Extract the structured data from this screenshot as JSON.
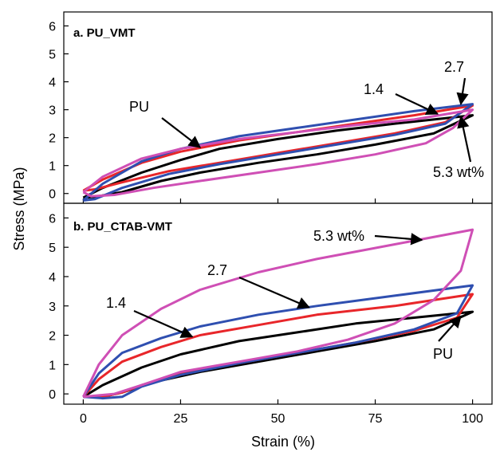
{
  "figure": {
    "y_label": "Stress (MPa)",
    "x_label": "Strain (%)"
  },
  "chart_data": [
    {
      "type": "line",
      "title": "a. PU_VMT",
      "xlabel": "Strain (%)",
      "ylabel": "Stress (MPa)",
      "xlim": [
        -5,
        105
      ],
      "ylim": [
        -0.35,
        6.5
      ],
      "x_ticks": [
        0,
        25,
        50,
        75,
        100
      ],
      "y_ticks": [
        0,
        1,
        2,
        3,
        4,
        5,
        6
      ],
      "x_tick_labels": [
        "0",
        "25",
        "50",
        "75",
        "100"
      ],
      "y_tick_labels": [
        "0",
        "1",
        "2",
        "3",
        "4",
        "5",
        "6"
      ],
      "grid": false,
      "series": [
        {
          "name": "PU",
          "color": "#000000",
          "loading": [
            [
              0,
              -0.15
            ],
            [
              5,
              0.2
            ],
            [
              15,
              0.75
            ],
            [
              25,
              1.2
            ],
            [
              35,
              1.6
            ],
            [
              50,
              1.95
            ],
            [
              65,
              2.25
            ],
            [
              80,
              2.5
            ],
            [
              100,
              2.8
            ]
          ],
          "unloading": [
            [
              100,
              2.8
            ],
            [
              90,
              2.15
            ],
            [
              75,
              1.75
            ],
            [
              60,
              1.4
            ],
            [
              45,
              1.1
            ],
            [
              30,
              0.75
            ],
            [
              20,
              0.45
            ],
            [
              10,
              0.05
            ],
            [
              3,
              -0.12
            ],
            [
              0,
              -0.15
            ]
          ]
        },
        {
          "name": "1.4",
          "color": "#e8262a",
          "loading": [
            [
              0,
              0.1
            ],
            [
              5,
              0.5
            ],
            [
              15,
              1.1
            ],
            [
              25,
              1.5
            ],
            [
              40,
              1.9
            ],
            [
              55,
              2.2
            ],
            [
              70,
              2.5
            ],
            [
              85,
              2.8
            ],
            [
              100,
              3.15
            ]
          ],
          "unloading": [
            [
              100,
              3.15
            ],
            [
              93,
              2.55
            ],
            [
              80,
              2.15
            ],
            [
              65,
              1.8
            ],
            [
              50,
              1.45
            ],
            [
              35,
              1.1
            ],
            [
              22,
              0.8
            ],
            [
              10,
              0.4
            ],
            [
              3,
              0.15
            ],
            [
              0,
              0.1
            ]
          ]
        },
        {
          "name": "2.7",
          "color": "#2f4fb0",
          "loading": [
            [
              0,
              -0.25
            ],
            [
              5,
              0.35
            ],
            [
              15,
              1.15
            ],
            [
              25,
              1.6
            ],
            [
              40,
              2.05
            ],
            [
              55,
              2.35
            ],
            [
              70,
              2.65
            ],
            [
              85,
              2.95
            ],
            [
              100,
              3.2
            ]
          ],
          "unloading": [
            [
              100,
              3.2
            ],
            [
              93,
              2.5
            ],
            [
              80,
              2.1
            ],
            [
              65,
              1.75
            ],
            [
              50,
              1.4
            ],
            [
              35,
              1.05
            ],
            [
              22,
              0.7
            ],
            [
              10,
              0.2
            ],
            [
              3,
              -0.2
            ],
            [
              0,
              -0.25
            ]
          ]
        },
        {
          "name": "5.3 wt%",
          "color": "#cf4fb5",
          "loading": [
            [
              0,
              0.05
            ],
            [
              5,
              0.6
            ],
            [
              15,
              1.25
            ],
            [
              25,
              1.6
            ],
            [
              40,
              1.95
            ],
            [
              55,
              2.2
            ],
            [
              70,
              2.45
            ],
            [
              85,
              2.65
            ],
            [
              100,
              3.0
            ]
          ],
          "unloading": [
            [
              100,
              3.0
            ],
            [
              95,
              2.35
            ],
            [
              88,
              1.8
            ],
            [
              75,
              1.4
            ],
            [
              60,
              1.05
            ],
            [
              45,
              0.75
            ],
            [
              30,
              0.45
            ],
            [
              18,
              0.2
            ],
            [
              8,
              -0.05
            ],
            [
              2,
              -0.1
            ],
            [
              0,
              0.05
            ]
          ]
        }
      ],
      "annotations": [
        {
          "text": "PU",
          "target": [
            30,
            1.65
          ]
        },
        {
          "text": "1.4",
          "target": [
            91,
            2.85
          ]
        },
        {
          "text": "2.7",
          "target": [
            97,
            3.2
          ]
        },
        {
          "text": "5.3 wt%",
          "target": [
            97,
            2.75
          ]
        }
      ]
    },
    {
      "type": "line",
      "title": "b. PU_CTAB-VMT",
      "xlabel": "Strain (%)",
      "ylabel": "Stress (MPa)",
      "xlim": [
        -5,
        105
      ],
      "ylim": [
        -0.35,
        6.5
      ],
      "x_ticks": [
        0,
        25,
        50,
        75,
        100
      ],
      "y_ticks": [
        0,
        1,
        2,
        3,
        4,
        5,
        6
      ],
      "x_tick_labels": [
        "0",
        "25",
        "50",
        "75",
        "100"
      ],
      "y_tick_labels": [
        "0",
        "1",
        "2",
        "3",
        "4",
        "5",
        "6"
      ],
      "grid": false,
      "series": [
        {
          "name": "PU",
          "color": "#000000",
          "loading": [
            [
              0,
              -0.1
            ],
            [
              5,
              0.3
            ],
            [
              15,
              0.9
            ],
            [
              25,
              1.35
            ],
            [
              40,
              1.8
            ],
            [
              55,
              2.1
            ],
            [
              70,
              2.4
            ],
            [
              85,
              2.6
            ],
            [
              100,
              2.8
            ]
          ],
          "unloading": [
            [
              100,
              2.8
            ],
            [
              90,
              2.2
            ],
            [
              75,
              1.8
            ],
            [
              60,
              1.45
            ],
            [
              45,
              1.1
            ],
            [
              30,
              0.75
            ],
            [
              18,
              0.4
            ],
            [
              10,
              0.05
            ],
            [
              5,
              -0.1
            ],
            [
              0,
              -0.1
            ]
          ]
        },
        {
          "name": "1.4",
          "color": "#e8262a",
          "loading": [
            [
              0,
              -0.1
            ],
            [
              4,
              0.5
            ],
            [
              10,
              1.1
            ],
            [
              20,
              1.6
            ],
            [
              30,
              2.0
            ],
            [
              45,
              2.35
            ],
            [
              60,
              2.7
            ],
            [
              80,
              3.0
            ],
            [
              100,
              3.4
            ]
          ],
          "unloading": [
            [
              100,
              3.4
            ],
            [
              96,
              2.6
            ],
            [
              85,
              2.15
            ],
            [
              70,
              1.75
            ],
            [
              55,
              1.4
            ],
            [
              40,
              1.05
            ],
            [
              25,
              0.7
            ],
            [
              15,
              0.3
            ],
            [
              10,
              0.05
            ],
            [
              5,
              -0.1
            ],
            [
              0,
              -0.1
            ]
          ]
        },
        {
          "name": "2.7",
          "color": "#2f4fb0",
          "loading": [
            [
              0,
              -0.1
            ],
            [
              4,
              0.7
            ],
            [
              10,
              1.4
            ],
            [
              20,
              1.9
            ],
            [
              30,
              2.3
            ],
            [
              45,
              2.7
            ],
            [
              60,
              3.0
            ],
            [
              80,
              3.35
            ],
            [
              100,
              3.7
            ]
          ],
          "unloading": [
            [
              100,
              3.7
            ],
            [
              96,
              2.75
            ],
            [
              85,
              2.2
            ],
            [
              70,
              1.75
            ],
            [
              55,
              1.4
            ],
            [
              40,
              1.05
            ],
            [
              25,
              0.65
            ],
            [
              15,
              0.25
            ],
            [
              10,
              -0.1
            ],
            [
              5,
              -0.15
            ],
            [
              0,
              -0.1
            ]
          ]
        },
        {
          "name": "5.3 wt%",
          "color": "#cf4fb5",
          "loading": [
            [
              0,
              -0.1
            ],
            [
              4,
              1.0
            ],
            [
              10,
              2.0
            ],
            [
              20,
              2.9
            ],
            [
              30,
              3.55
            ],
            [
              45,
              4.15
            ],
            [
              60,
              4.6
            ],
            [
              80,
              5.1
            ],
            [
              100,
              5.6
            ]
          ],
          "unloading": [
            [
              100,
              5.6
            ],
            [
              97,
              4.2
            ],
            [
              90,
              3.2
            ],
            [
              80,
              2.4
            ],
            [
              68,
              1.85
            ],
            [
              55,
              1.45
            ],
            [
              40,
              1.1
            ],
            [
              25,
              0.75
            ],
            [
              15,
              0.3
            ],
            [
              8,
              0.0
            ],
            [
              0,
              -0.1
            ]
          ]
        }
      ],
      "annotations": [
        {
          "text": "5.3 wt%",
          "target": [
            87,
            5.25
          ]
        },
        {
          "text": "2.7",
          "target": [
            58,
            2.95
          ]
        },
        {
          "text": "1.4",
          "target": [
            28,
            1.95
          ]
        },
        {
          "text": "PU",
          "target": [
            97,
            2.65
          ]
        }
      ]
    }
  ]
}
